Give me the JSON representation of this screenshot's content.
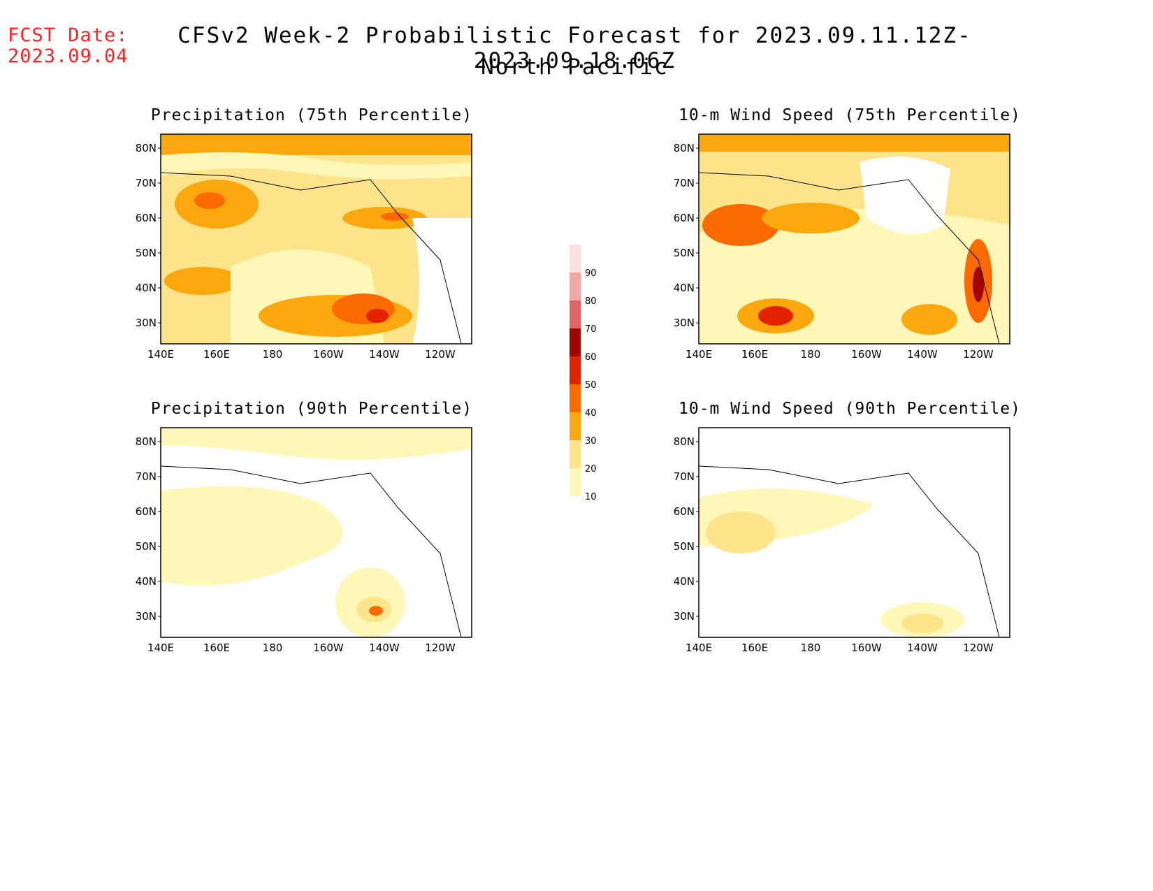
{
  "header": {
    "fcst_label": "FCST Date:",
    "fcst_date": "2023.09.04",
    "title": "CFSv2 Week-2 Probabilistic Forecast for 2023.09.11.12Z-2023.09.18.06Z",
    "region": "North Pacific"
  },
  "panels": [
    {
      "title": "Precipitation (75th Percentile)"
    },
    {
      "title": "10-m Wind Speed (75th Percentile)"
    },
    {
      "title": "Precipitation (90th Percentile)"
    },
    {
      "title": "10-m Wind Speed (90th Percentile)"
    }
  ],
  "axes": {
    "lat_labels": [
      "80N",
      "70N",
      "60N",
      "50N",
      "40N",
      "30N"
    ],
    "lon_labels": [
      "140E",
      "160E",
      "180",
      "160W",
      "140W",
      "120W"
    ]
  },
  "colorbar": {
    "levels": [
      "10",
      "20",
      "30",
      "40",
      "50",
      "60",
      "70",
      "80",
      "90"
    ],
    "colors": [
      "#fff7b8",
      "#fde389",
      "#fba70e",
      "#fb6a00",
      "#e32300",
      "#a20600",
      "#e06666",
      "#f4a6a6",
      "#fde0e0"
    ]
  }
}
